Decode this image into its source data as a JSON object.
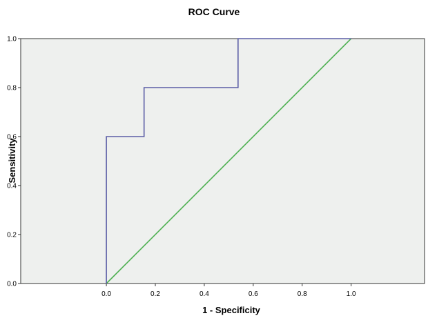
{
  "chart_data": {
    "type": "line",
    "title": "ROC Curve",
    "xlabel": "1 - Specificity",
    "ylabel": "Sensitivity",
    "xlim": [
      -0.35,
      1.3
    ],
    "ylim": [
      0,
      1
    ],
    "x_ticks": [
      "0.0",
      "0.2",
      "0.4",
      "0.6",
      "0.8",
      "1.0"
    ],
    "y_ticks": [
      "0.0",
      "0.2",
      "0.4",
      "0.6",
      "0.8",
      "1.0"
    ],
    "grid": false,
    "legend": "none",
    "plot_background": "#eef0ee",
    "series": [
      {
        "color": "#5b5ea6",
        "x": [
          0,
          0,
          0.154,
          0.154,
          0.538,
          0.538,
          1.0
        ],
        "y": [
          0,
          0.6,
          0.6,
          0.8,
          0.8,
          1.0,
          1.0
        ]
      },
      {
        "color": "#4caf50",
        "x": [
          0,
          1
        ],
        "y": [
          0,
          1
        ]
      }
    ]
  }
}
